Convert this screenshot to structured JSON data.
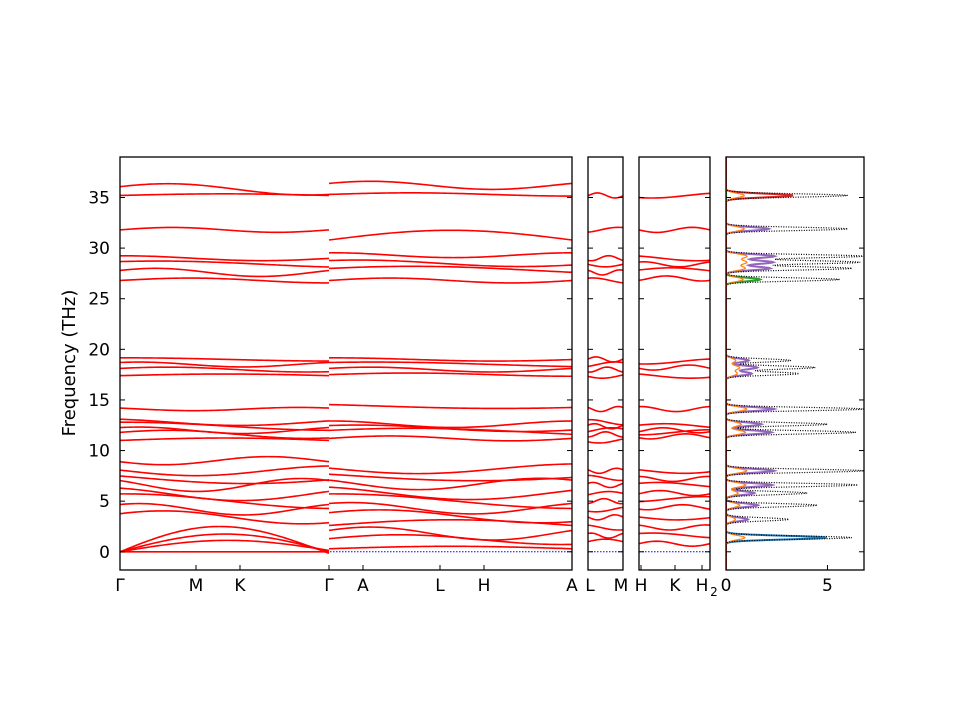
{
  "chart_data": {
    "type": "line",
    "ylabel": "Frequency (THz)",
    "ylim": [
      -1.8,
      39
    ],
    "yticks": [
      0,
      5,
      10,
      15,
      20,
      25,
      30,
      35
    ],
    "band_color": "#ff0000",
    "zero_line_color": "#0000ff",
    "panels": [
      {
        "name": "Γ-M-K-Γ / A-L-H-A",
        "xticks": [
          "Γ",
          "M",
          "K",
          "Γ",
          "A",
          "L",
          "H",
          "A"
        ]
      },
      {
        "name": "L-M",
        "xticks": [
          "L",
          "M"
        ]
      },
      {
        "name": "H-K-H2",
        "xticks": [
          "H",
          "K",
          "H"
        ],
        "subscript": "2"
      }
    ],
    "dos_panel": {
      "xticks": [
        "0",
        "5"
      ],
      "xlim": [
        0,
        6.8
      ],
      "series_colors": [
        "#1f77b4",
        "#ff7f0e",
        "#2ca02c",
        "#d62728",
        "#9467bd",
        "#000000"
      ],
      "peaks": [
        {
          "f": 1.4,
          "amp": 6.2,
          "color": "#1f77b4"
        },
        {
          "f": 3.2,
          "amp": 3.1,
          "color": "#9467bd"
        },
        {
          "f": 4.6,
          "amp": 4.5,
          "color": "#9467bd"
        },
        {
          "f": 5.8,
          "amp": 4.0,
          "color": "#9467bd"
        },
        {
          "f": 6.6,
          "amp": 6.5,
          "color": "#9467bd"
        },
        {
          "f": 8.0,
          "amp": 6.8,
          "color": "#9467bd"
        },
        {
          "f": 11.8,
          "amp": 6.4,
          "color": "#9467bd"
        },
        {
          "f": 12.6,
          "amp": 5.0,
          "color": "#9467bd"
        },
        {
          "f": 14.1,
          "amp": 6.8,
          "color": "#9467bd"
        },
        {
          "f": 17.6,
          "amp": 3.6,
          "color": "#9467bd"
        },
        {
          "f": 18.2,
          "amp": 4.4,
          "color": "#9467bd"
        },
        {
          "f": 18.9,
          "amp": 3.2,
          "color": "#9467bd"
        },
        {
          "f": 26.9,
          "amp": 5.6,
          "color": "#2ca02c"
        },
        {
          "f": 28.0,
          "amp": 6.2,
          "color": "#9467bd"
        },
        {
          "f": 28.6,
          "amp": 6.6,
          "color": "#9467bd"
        },
        {
          "f": 29.2,
          "amp": 6.8,
          "color": "#9467bd"
        },
        {
          "f": 31.9,
          "amp": 6.0,
          "color": "#9467bd"
        },
        {
          "f": 35.2,
          "amp": 6.0,
          "color": "#d62728"
        }
      ]
    },
    "bands_segment1": [
      {
        "c": 0.0,
        "a": 0.0,
        "s": 1.5,
        "e": 0.0
      },
      {
        "c": 1.0,
        "a": 0.8,
        "s": 2.0,
        "e": 0.2
      },
      {
        "c": 1.6,
        "a": 1.1,
        "s": 3.0,
        "e": 0.5
      },
      {
        "c": 2.4,
        "a": 0.9,
        "s": 5.0,
        "e": 0.0
      },
      {
        "c": 3.4,
        "a": 0.8,
        "s": 7.0,
        "e": 0.6
      },
      {
        "c": 4.2,
        "a": 0.7,
        "s": 9.0,
        "e": 1.0
      },
      {
        "c": 5.0,
        "a": 0.9,
        "s": 11.0,
        "e": 1.5
      },
      {
        "c": 5.7,
        "a": 0.8,
        "s": 13.0,
        "e": 2.0
      },
      {
        "c": 6.6,
        "a": 0.8,
        "s": 15.0,
        "e": 2.4
      },
      {
        "c": 7.3,
        "a": 0.7,
        "s": 17.0,
        "e": 2.8
      },
      {
        "c": 8.0,
        "a": 0.6,
        "s": 19.0,
        "e": 3.0
      },
      {
        "c": 9.0,
        "a": 0.5,
        "s": 21.0,
        "e": 3.4
      },
      {
        "c": 11.0,
        "a": 0.3,
        "s": 23.0,
        "e": 0.0
      },
      {
        "c": 11.6,
        "a": 0.5,
        "s": 25.0,
        "e": 0.5
      },
      {
        "c": 12.0,
        "a": 0.4,
        "s": 27.0,
        "e": 1.0
      },
      {
        "c": 12.4,
        "a": 0.5,
        "s": 29.0,
        "e": 1.5
      },
      {
        "c": 12.8,
        "a": 0.4,
        "s": 31.0,
        "e": 2.0
      },
      {
        "c": 14.1,
        "a": 0.2,
        "s": 33.0,
        "e": 2.5
      },
      {
        "c": 17.4,
        "a": 0.2,
        "s": 35.0,
        "e": 0.0
      },
      {
        "c": 18.0,
        "a": 0.3,
        "s": 37.0,
        "e": 0.5
      },
      {
        "c": 18.5,
        "a": 0.3,
        "s": 39.0,
        "e": 1.0
      },
      {
        "c": 19.0,
        "a": 0.2,
        "s": 41.0,
        "e": 1.5
      },
      {
        "c": 26.8,
        "a": 0.3,
        "s": 43.0,
        "e": 0.0
      },
      {
        "c": 27.6,
        "a": 0.5,
        "s": 45.0,
        "e": 0.5
      },
      {
        "c": 28.4,
        "a": 0.4,
        "s": 47.0,
        "e": 1.0
      },
      {
        "c": 29.0,
        "a": 0.3,
        "s": 49.0,
        "e": 1.5
      },
      {
        "c": 31.8,
        "a": 0.3,
        "s": 51.0,
        "e": 0.0
      },
      {
        "c": 35.2,
        "a": 0.2,
        "s": 53.0,
        "e": 0.0
      },
      {
        "c": 35.8,
        "a": 0.7,
        "s": 55.0,
        "e": 0.5
      }
    ],
    "bands_segment2": [
      {
        "c": 0.3,
        "a": 0.3,
        "s": 1.5,
        "e": 0.0
      },
      {
        "c": 1.2,
        "a": 0.6,
        "s": 2.0,
        "e": 0.2
      },
      {
        "c": 1.8,
        "a": 0.8,
        "s": 3.0,
        "e": 0.5
      },
      {
        "c": 2.6,
        "a": 0.7,
        "s": 5.0,
        "e": 0.0
      },
      {
        "c": 3.5,
        "a": 0.8,
        "s": 7.0,
        "e": 0.6
      },
      {
        "c": 4.3,
        "a": 0.7,
        "s": 9.0,
        "e": 1.0
      },
      {
        "c": 5.0,
        "a": 0.9,
        "s": 11.0,
        "e": 1.5
      },
      {
        "c": 5.8,
        "a": 0.8,
        "s": 13.0,
        "e": 2.0
      },
      {
        "c": 6.7,
        "a": 0.7,
        "s": 15.0,
        "e": 2.4
      },
      {
        "c": 7.5,
        "a": 0.6,
        "s": 17.0,
        "e": 2.8
      },
      {
        "c": 8.2,
        "a": 0.6,
        "s": 19.0,
        "e": 3.0
      },
      {
        "c": 11.2,
        "a": 0.3,
        "s": 23.0,
        "e": 0.0
      },
      {
        "c": 11.8,
        "a": 0.5,
        "s": 25.0,
        "e": 0.5
      },
      {
        "c": 12.2,
        "a": 0.4,
        "s": 27.0,
        "e": 1.0
      },
      {
        "c": 12.6,
        "a": 0.4,
        "s": 29.0,
        "e": 1.5
      },
      {
        "c": 14.4,
        "a": 0.3,
        "s": 33.0,
        "e": 2.5
      },
      {
        "c": 17.5,
        "a": 0.2,
        "s": 35.0,
        "e": 0.0
      },
      {
        "c": 18.0,
        "a": 0.3,
        "s": 37.0,
        "e": 0.5
      },
      {
        "c": 18.5,
        "a": 0.3,
        "s": 39.0,
        "e": 1.0
      },
      {
        "c": 19.0,
        "a": 0.2,
        "s": 41.0,
        "e": 1.5
      },
      {
        "c": 26.8,
        "a": 0.3,
        "s": 43.0,
        "e": 0.0
      },
      {
        "c": 27.8,
        "a": 0.5,
        "s": 45.0,
        "e": 0.5
      },
      {
        "c": 28.5,
        "a": 0.4,
        "s": 47.0,
        "e": 1.0
      },
      {
        "c": 29.3,
        "a": 0.3,
        "s": 49.0,
        "e": 1.5
      },
      {
        "c": 30.8,
        "a": 1.2,
        "s": 51.0,
        "e": 0.0
      },
      {
        "c": 35.3,
        "a": 0.2,
        "s": 53.0,
        "e": 0.0
      },
      {
        "c": 36.2,
        "a": 0.5,
        "s": 55.0,
        "e": 0.5
      }
    ],
    "bands_panel_LM": [
      1.0,
      1.6,
      2.4,
      3.4,
      4.2,
      5.0,
      5.7,
      6.6,
      7.3,
      8.0,
      11.0,
      11.6,
      12.0,
      12.4,
      12.8,
      14.1,
      17.4,
      18.0,
      18.5,
      19.0,
      26.8,
      27.6,
      28.4,
      29.0,
      31.8,
      35.2
    ],
    "bands_panel_HKH": [
      0.8,
      1.6,
      2.4,
      3.4,
      4.4,
      5.2,
      5.8,
      6.6,
      7.2,
      8.0,
      11.4,
      11.8,
      12.0,
      12.4,
      14.1,
      17.4,
      18.2,
      18.8,
      27.0,
      27.8,
      28.4,
      29.0,
      31.8,
      35.2
    ]
  }
}
